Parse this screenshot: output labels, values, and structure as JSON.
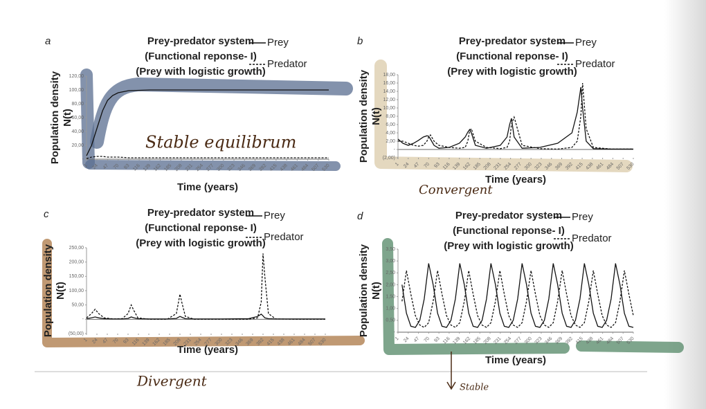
{
  "chart_data": [
    {
      "type": "line",
      "label": "a",
      "title": [
        "Prey-predator system",
        "(Functional reponse- I)",
        "(Prey with logistic growth)"
      ],
      "ylabel": [
        "Population density",
        "N(t)"
      ],
      "xlabel": "Time (years)",
      "annotation": "Stable equilibrum",
      "x": [
        1,
        12,
        24,
        36,
        47,
        58,
        70,
        93,
        139,
        208,
        300,
        400,
        530
      ],
      "series": [
        {
          "name": "Prey",
          "color": "#111",
          "dash": false,
          "values": [
            5,
            20,
            45,
            70,
            85,
            92,
            96,
            99,
            100,
            100,
            100,
            100,
            100
          ]
        },
        {
          "name": "Predator",
          "color": "#111",
          "dash": true,
          "values": [
            1,
            3,
            4,
            4,
            3,
            3,
            3,
            2,
            2,
            2,
            2,
            2,
            2
          ]
        }
      ],
      "xlim": [
        1,
        530
      ],
      "xticks": [
        1,
        24,
        47,
        70,
        93,
        116,
        139,
        162,
        185,
        208,
        231,
        254,
        277,
        300,
        323,
        346,
        369,
        392,
        415,
        438,
        461,
        484,
        507,
        530
      ],
      "ylim": [
        0,
        120
      ],
      "yticks": [
        {
          "value": 0,
          "label": "-"
        },
        {
          "value": 20,
          "label": "20,00"
        },
        {
          "value": 40,
          "label": "40,00"
        },
        {
          "value": 60,
          "label": "60,00"
        },
        {
          "value": 80,
          "label": "80,00"
        },
        {
          "value": 100,
          "label": "100,00"
        },
        {
          "value": 120,
          "label": "120,00"
        }
      ]
    },
    {
      "type": "line",
      "label": "b",
      "title": [
        "Prey-predator system",
        "(Functional reponse- I)",
        "(Prey with logistic growth)"
      ],
      "ylabel": [
        "Population density",
        "N(t)"
      ],
      "xlabel": "Time (years)",
      "annotation": "Convergent",
      "x": [
        1,
        12,
        24,
        36,
        47,
        58,
        66,
        70,
        74,
        82,
        93,
        116,
        139,
        152,
        158,
        162,
        166,
        175,
        200,
        231,
        246,
        252,
        256,
        262,
        280,
        320,
        360,
        392,
        404,
        412,
        416,
        424,
        440,
        480,
        530
      ],
      "series": [
        {
          "name": "Prey",
          "color": "#111",
          "dash": false,
          "values": [
            2.5,
            1.5,
            1,
            1.5,
            2.2,
            3,
            3.3,
            3.2,
            2.5,
            1,
            0.3,
            0.5,
            1.5,
            3,
            4.2,
            4.8,
            4,
            1,
            0.3,
            1,
            3,
            6,
            7.5,
            3,
            0.3,
            0.5,
            1.5,
            4,
            9,
            15,
            10,
            2,
            0.2,
            0.1,
            0.1
          ]
        },
        {
          "name": "Predator",
          "color": "#111",
          "dash": true,
          "values": [
            2,
            2,
            1.5,
            1,
            0.8,
            1,
            2,
            3,
            3.5,
            2,
            1,
            0.5,
            0.3,
            0.5,
            2,
            4.5,
            5,
            2,
            0.5,
            0.2,
            0.5,
            2,
            6,
            7.8,
            1,
            0.2,
            0.1,
            0.5,
            2,
            8,
            16,
            5,
            0.5,
            0.1,
            0.1
          ]
        }
      ],
      "xlim": [
        1,
        530
      ],
      "xticks": [
        1,
        24,
        47,
        70,
        93,
        116,
        139,
        162,
        185,
        208,
        231,
        254,
        277,
        300,
        323,
        346,
        369,
        392,
        415,
        438,
        461,
        484,
        507,
        530
      ],
      "ylim": [
        -2,
        18
      ],
      "yticks": [
        {
          "value": -2,
          "label": "(2,00)"
        },
        {
          "value": 0,
          "label": "-"
        },
        {
          "value": 2,
          "label": "2,00"
        },
        {
          "value": 4,
          "label": "4,00"
        },
        {
          "value": 6,
          "label": "6,00"
        },
        {
          "value": 8,
          "label": "8,00"
        },
        {
          "value": 10,
          "label": "10,00"
        },
        {
          "value": 12,
          "label": "12,00"
        },
        {
          "value": 14,
          "label": "14,00"
        },
        {
          "value": 16,
          "label": "16,00"
        },
        {
          "value": 18,
          "label": "18,00"
        }
      ]
    },
    {
      "type": "line",
      "label": "c",
      "title": [
        "Prey-predator system",
        "(Functional reponse- I)",
        "(Prey with logistic growth)"
      ],
      "ylabel": [
        "Population density",
        "N(t)"
      ],
      "xlabel": "Time (years)",
      "annotation": "Divergent",
      "x": [
        1,
        12,
        20,
        28,
        40,
        60,
        80,
        93,
        100,
        106,
        115,
        140,
        180,
        200,
        208,
        212,
        220,
        240,
        300,
        360,
        380,
        388,
        392,
        396,
        404,
        420,
        460,
        530
      ],
      "series": [
        {
          "name": "Prey",
          "color": "#111",
          "dash": false,
          "values": [
            2,
            5,
            8,
            5,
            2,
            1,
            1,
            3,
            8,
            5,
            2,
            1,
            1,
            3,
            10,
            7,
            2,
            1,
            1,
            2,
            10,
            18,
            12,
            5,
            2,
            1,
            1,
            1
          ]
        },
        {
          "name": "Predator",
          "color": "#111",
          "dash": true,
          "values": [
            5,
            20,
            35,
            20,
            5,
            1,
            2,
            20,
            50,
            30,
            5,
            0,
            0,
            20,
            88,
            60,
            10,
            0,
            0,
            0,
            5,
            60,
            230,
            150,
            20,
            1,
            0,
            0
          ]
        }
      ],
      "xlim": [
        1,
        530
      ],
      "xticks": [
        1,
        24,
        47,
        70,
        93,
        116,
        139,
        162,
        185,
        208,
        231,
        254,
        277,
        300,
        323,
        346,
        369,
        392,
        415,
        438,
        461,
        484,
        507,
        530
      ],
      "ylim": [
        -50,
        250
      ],
      "yticks": [
        {
          "value": -50,
          "label": "(50,00)"
        },
        {
          "value": 0,
          "label": "-"
        },
        {
          "value": 50,
          "label": "50,00"
        },
        {
          "value": 100,
          "label": "100,00"
        },
        {
          "value": 150,
          "label": "150,00"
        },
        {
          "value": 200,
          "label": "200,00"
        },
        {
          "value": 250,
          "label": "250,00"
        }
      ]
    },
    {
      "type": "line",
      "label": "d",
      "title": [
        "Prey-predator system",
        "(Functional reponse- I)",
        "(Prey with logistic growth)"
      ],
      "ylabel": [
        "Population density",
        "N(t)"
      ],
      "xlabel": "Time (years)",
      "annotation": "Stable",
      "x": [
        10,
        20,
        30,
        40,
        50,
        60,
        70,
        80,
        90,
        100,
        110,
        120,
        130,
        140,
        150,
        160,
        170,
        180,
        190,
        200,
        210,
        220,
        230,
        240,
        250,
        260,
        270,
        280,
        290,
        300,
        310,
        320,
        330,
        340,
        350,
        360,
        370,
        380,
        390,
        400,
        410,
        420,
        430,
        440,
        450,
        460,
        470,
        480,
        490,
        500,
        510,
        520,
        530
      ],
      "series": [
        {
          "name": "Prey",
          "color": "#111",
          "dash": false,
          "values": [
            2.0,
            0.8,
            0.25,
            0.2,
            0.5,
            1.4,
            2.9,
            2.0,
            0.8,
            0.25,
            0.2,
            0.5,
            1.4,
            2.9,
            2.0,
            0.8,
            0.25,
            0.2,
            0.5,
            1.4,
            2.9,
            2.0,
            0.8,
            0.25,
            0.2,
            0.5,
            1.4,
            2.9,
            2.0,
            0.8,
            0.25,
            0.2,
            0.5,
            1.4,
            2.9,
            2.0,
            0.8,
            0.25,
            0.2,
            0.5,
            1.4,
            2.9,
            2.0,
            0.8,
            0.25,
            0.2,
            0.5,
            1.4,
            2.9,
            2.0,
            0.8,
            0.25,
            0.2
          ]
        },
        {
          "name": "Predator",
          "color": "#111",
          "dash": true,
          "values": [
            1.3,
            2.6,
            1.6,
            0.7,
            0.3,
            0.2,
            0.4,
            1.3,
            2.6,
            1.6,
            0.7,
            0.3,
            0.2,
            0.4,
            1.3,
            2.6,
            1.6,
            0.7,
            0.3,
            0.2,
            0.4,
            1.3,
            2.6,
            1.6,
            0.7,
            0.3,
            0.2,
            0.4,
            1.3,
            2.6,
            1.6,
            0.7,
            0.3,
            0.2,
            0.4,
            1.3,
            2.6,
            1.6,
            0.7,
            0.3,
            0.2,
            0.4,
            1.3,
            2.6,
            1.6,
            0.7,
            0.3,
            0.2,
            0.4,
            1.3,
            2.6,
            1.6,
            0.7
          ]
        }
      ],
      "xlim": [
        1,
        530
      ],
      "xticks": [
        1,
        24,
        47,
        70,
        93,
        116,
        139,
        162,
        185,
        208,
        231,
        254,
        277,
        300,
        323,
        346,
        369,
        392,
        415,
        438,
        461,
        484,
        507,
        530
      ],
      "ylim": [
        0,
        3.5
      ],
      "yticks": [
        {
          "value": 0,
          "label": "-"
        },
        {
          "value": 0.5,
          "label": "0,50"
        },
        {
          "value": 1,
          "label": "1,00"
        },
        {
          "value": 1.5,
          "label": "1,50"
        },
        {
          "value": 2,
          "label": "2,00"
        },
        {
          "value": 2.5,
          "label": "2,50"
        },
        {
          "value": 3,
          "label": "3,00"
        },
        {
          "value": 3.5,
          "label": "3,50"
        }
      ]
    }
  ]
}
